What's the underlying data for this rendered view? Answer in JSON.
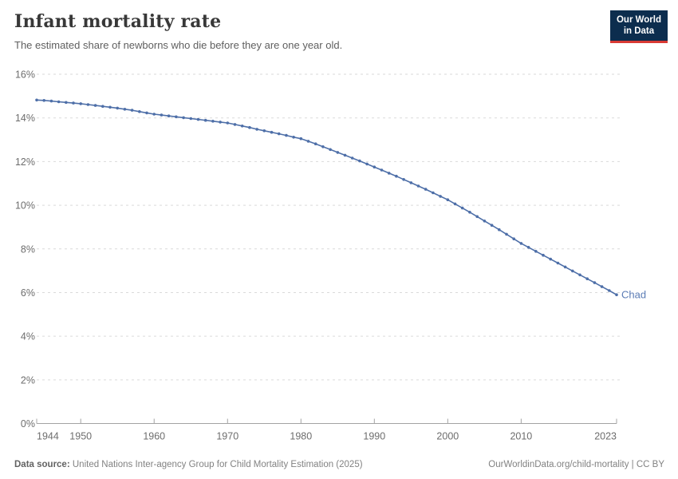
{
  "header": {
    "title": "Infant mortality rate",
    "subtitle": "The estimated share of newborns who die before they are one year old."
  },
  "logo": {
    "line1": "Our World",
    "line2": "in Data"
  },
  "footer": {
    "source_label": "Data source:",
    "source_text": " United Nations Inter-agency Group for Child Mortality Estimation (2025)",
    "right_text": "OurWorldinData.org/child-mortality | CC BY"
  },
  "chart_data": {
    "type": "line",
    "title": "Infant mortality rate",
    "unit": "%",
    "xlim": [
      1944,
      2023
    ],
    "ylim": [
      0,
      16
    ],
    "grid": "horizontal-dashed",
    "legend_position": "end-of-line-label",
    "xticks": [
      1944,
      1950,
      1960,
      1970,
      1980,
      1990,
      2000,
      2010,
      2023
    ],
    "yticks": [
      0,
      2,
      4,
      6,
      8,
      10,
      12,
      14,
      16
    ],
    "ytick_suffix": "%",
    "x": [
      1944,
      1945,
      1946,
      1947,
      1948,
      1949,
      1950,
      1951,
      1952,
      1953,
      1954,
      1955,
      1956,
      1957,
      1958,
      1959,
      1960,
      1961,
      1962,
      1963,
      1964,
      1965,
      1966,
      1967,
      1968,
      1969,
      1970,
      1971,
      1972,
      1973,
      1974,
      1975,
      1976,
      1977,
      1978,
      1979,
      1980,
      1981,
      1982,
      1983,
      1984,
      1985,
      1986,
      1987,
      1988,
      1989,
      1990,
      1991,
      1992,
      1993,
      1994,
      1995,
      1996,
      1997,
      1998,
      1999,
      2000,
      2001,
      2002,
      2003,
      2004,
      2005,
      2006,
      2007,
      2008,
      2009,
      2010,
      2011,
      2012,
      2013,
      2014,
      2015,
      2016,
      2017,
      2018,
      2019,
      2020,
      2021,
      2022,
      2023
    ],
    "series": [
      {
        "name": "Chad",
        "values": [
          14.82,
          14.8,
          14.77,
          14.74,
          14.71,
          14.68,
          14.65,
          14.61,
          14.57,
          14.53,
          14.49,
          14.45,
          14.4,
          14.35,
          14.29,
          14.23,
          14.17,
          14.13,
          14.09,
          14.05,
          14.01,
          13.97,
          13.93,
          13.89,
          13.85,
          13.81,
          13.77,
          13.7,
          13.63,
          13.56,
          13.48,
          13.41,
          13.34,
          13.27,
          13.2,
          13.12,
          13.05,
          12.93,
          12.81,
          12.68,
          12.55,
          12.42,
          12.29,
          12.16,
          12.03,
          11.89,
          11.75,
          11.61,
          11.47,
          11.33,
          11.18,
          11.03,
          10.88,
          10.73,
          10.57,
          10.41,
          10.25,
          10.06,
          9.87,
          9.68,
          9.48,
          9.28,
          9.08,
          8.88,
          8.67,
          8.46,
          8.25,
          8.07,
          7.89,
          7.71,
          7.53,
          7.35,
          7.17,
          6.99,
          6.81,
          6.63,
          6.45,
          6.27,
          6.09,
          5.9
        ]
      }
    ],
    "colors": {
      "line": "#4e6fa8",
      "point": "#4e6fa8",
      "entity_label": "#5b7cb5",
      "grid": "#dadada",
      "axis": "#a3a3a3",
      "tick_label": "#6d6d6d"
    }
  }
}
